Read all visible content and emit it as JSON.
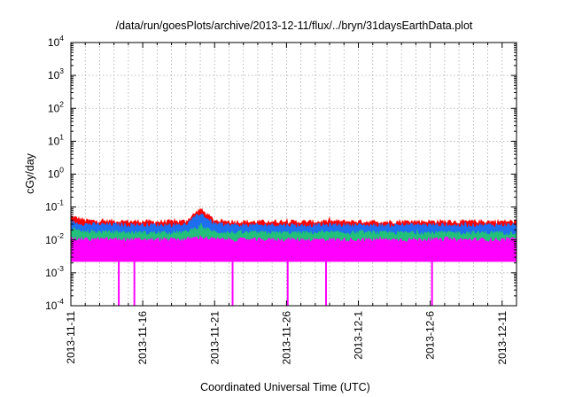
{
  "chart_data": {
    "type": "area",
    "title": "/data/run/goesPlots/archive/2013-12-11/flux/../bryn/31daysEarthData.plot",
    "xlabel": "Coordinated Universal Time (UTC)",
    "ylabel": "cGy/day",
    "y_scale": "log",
    "ylim": [
      0.0001,
      10000
    ],
    "xlim": [
      "2013-11-11",
      "2013-12-12"
    ],
    "grid": true,
    "legend": "none",
    "x_ticks": [
      {
        "date": "2013-11-11",
        "label": "2013-11-11"
      },
      {
        "date": "2013-11-16",
        "label": "2013-11-16"
      },
      {
        "date": "2013-11-21",
        "label": "2013-11-21"
      },
      {
        "date": "2013-11-26",
        "label": "2013-11-26"
      },
      {
        "date": "2013-12-01",
        "label": "2013-12-1"
      },
      {
        "date": "2013-12-06",
        "label": "2013-12-6"
      },
      {
        "date": "2013-12-11",
        "label": "2013-12-11"
      }
    ],
    "y_ticks": [
      {
        "value": 0.0001,
        "base": "10",
        "exp": "-4"
      },
      {
        "value": 0.001,
        "base": "10",
        "exp": "-3"
      },
      {
        "value": 0.01,
        "base": "10",
        "exp": "-2"
      },
      {
        "value": 0.1,
        "base": "10",
        "exp": "-1"
      },
      {
        "value": 1,
        "base": "10",
        "exp": "0"
      },
      {
        "value": 10,
        "base": "10",
        "exp": "1"
      },
      {
        "value": 100,
        "base": "10",
        "exp": "2"
      },
      {
        "value": 1000,
        "base": "10",
        "exp": "3"
      },
      {
        "value": 10000,
        "base": "10",
        "exp": "4"
      }
    ],
    "x": [
      "2013-11-11",
      "2013-11-12",
      "2013-11-13",
      "2013-11-14",
      "2013-11-15",
      "2013-11-16",
      "2013-11-17",
      "2013-11-18",
      "2013-11-19",
      "2013-11-20",
      "2013-11-21",
      "2013-11-22",
      "2013-11-23",
      "2013-11-24",
      "2013-11-25",
      "2013-11-26",
      "2013-11-27",
      "2013-11-28",
      "2013-11-29",
      "2013-11-30",
      "2013-12-01",
      "2013-12-02",
      "2013-12-03",
      "2013-12-04",
      "2013-12-05",
      "2013-12-06",
      "2013-12-07",
      "2013-12-08",
      "2013-12-09",
      "2013-12-10",
      "2013-12-11",
      "2013-12-12"
    ],
    "series": [
      {
        "color": "#ff0000",
        "values": [
          0.06,
          0.045,
          0.043,
          0.043,
          0.042,
          0.042,
          0.041,
          0.042,
          0.043,
          0.1,
          0.045,
          0.042,
          0.041,
          0.041,
          0.042,
          0.042,
          0.041,
          0.041,
          0.042,
          0.042,
          0.042,
          0.041,
          0.041,
          0.042,
          0.042,
          0.042,
          0.042,
          0.041,
          0.042,
          0.042,
          0.042,
          0.042
        ]
      },
      {
        "color": "#1e6ef0",
        "values": [
          0.04,
          0.035,
          0.034,
          0.034,
          0.033,
          0.033,
          0.033,
          0.033,
          0.034,
          0.075,
          0.035,
          0.033,
          0.032,
          0.032,
          0.033,
          0.033,
          0.032,
          0.032,
          0.033,
          0.033,
          0.033,
          0.032,
          0.032,
          0.033,
          0.033,
          0.033,
          0.033,
          0.032,
          0.033,
          0.033,
          0.033,
          0.033
        ]
      },
      {
        "color": "#22c07a",
        "values": [
          0.022,
          0.02,
          0.02,
          0.02,
          0.019,
          0.019,
          0.019,
          0.019,
          0.02,
          0.03,
          0.02,
          0.019,
          0.019,
          0.019,
          0.019,
          0.019,
          0.019,
          0.019,
          0.019,
          0.019,
          0.019,
          0.019,
          0.019,
          0.019,
          0.019,
          0.019,
          0.019,
          0.019,
          0.019,
          0.019,
          0.019,
          0.019
        ]
      },
      {
        "color": "#ff00ff",
        "values": [
          0.0125,
          0.012,
          0.012,
          0.012,
          0.0118,
          0.0118,
          0.0118,
          0.0118,
          0.012,
          0.014,
          0.012,
          0.0118,
          0.0117,
          0.0117,
          0.0118,
          0.0118,
          0.0117,
          0.0117,
          0.0118,
          0.0118,
          0.0118,
          0.0117,
          0.0117,
          0.0118,
          0.0118,
          0.0118,
          0.0118,
          0.0117,
          0.0118,
          0.0118,
          0.0118,
          0.0118
        ]
      }
    ],
    "baseline": 0.0022,
    "dropouts": [
      "2013-11-14T08:00",
      "2013-11-15T10:00",
      "2013-11-22T06:00",
      "2013-11-26T02:00",
      "2013-11-28T18:00",
      "2013-12-06T03:00"
    ]
  }
}
